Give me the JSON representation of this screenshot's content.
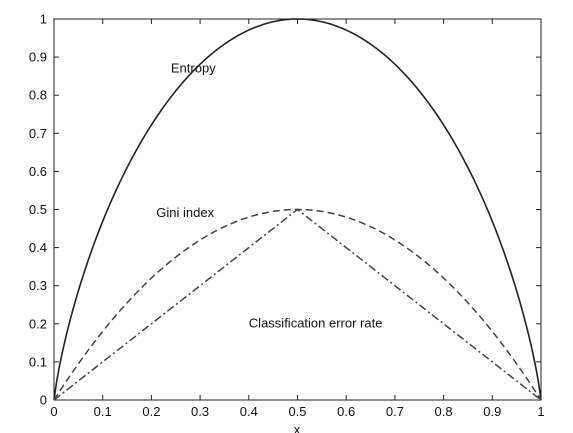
{
  "chart_data": {
    "type": "line",
    "title": "",
    "xlabel": "",
    "ylabel": "",
    "xlim": [
      0,
      1
    ],
    "ylim": [
      0,
      1
    ],
    "grid": false,
    "x_ticks": [
      "0",
      "0.1",
      "0.2",
      "0.3",
      "0.4",
      "0.5",
      "0.6",
      "0.7",
      "0.8",
      "0.9",
      "1"
    ],
    "y_ticks": [
      "0",
      "0.1",
      "0.2",
      "0.3",
      "0.4",
      "0.5",
      "0.6",
      "0.7",
      "0.8",
      "0.9",
      "1"
    ],
    "x": [
      0,
      0.05,
      0.1,
      0.15,
      0.2,
      0.25,
      0.3,
      0.35,
      0.4,
      0.45,
      0.5,
      0.55,
      0.6,
      0.65,
      0.7,
      0.75,
      0.8,
      0.85,
      0.9,
      0.95,
      1
    ],
    "series": [
      {
        "values": [
          0,
          0.29,
          0.47,
          0.61,
          0.72,
          0.81,
          0.88,
          0.93,
          0.97,
          0.99,
          1.0,
          0.99,
          0.97,
          0.93,
          0.88,
          0.81,
          0.72,
          0.61,
          0.47,
          0.29,
          0
        ],
        "line_style": "solid",
        "color": "#222222"
      },
      {
        "values": [
          0,
          0.095,
          0.18,
          0.255,
          0.32,
          0.375,
          0.42,
          0.455,
          0.48,
          0.495,
          0.5,
          0.495,
          0.48,
          0.455,
          0.42,
          0.375,
          0.32,
          0.255,
          0.18,
          0.095,
          0
        ],
        "line_style": "dashed",
        "color": "#444444"
      },
      {
        "values": [
          0,
          0.05,
          0.1,
          0.15,
          0.2,
          0.25,
          0.3,
          0.35,
          0.4,
          0.45,
          0.5,
          0.45,
          0.4,
          0.35,
          0.3,
          0.25,
          0.2,
          0.15,
          0.1,
          0.05,
          0
        ],
        "line_style": "dashdot",
        "color": "#444444"
      }
    ],
    "annotations": [
      {
        "text": "Entropy",
        "x": 0.24,
        "y": 0.86
      },
      {
        "text": "Gini index",
        "x": 0.21,
        "y": 0.48
      },
      {
        "text": "Classification error rate",
        "x": 0.4,
        "y": 0.19
      }
    ]
  }
}
